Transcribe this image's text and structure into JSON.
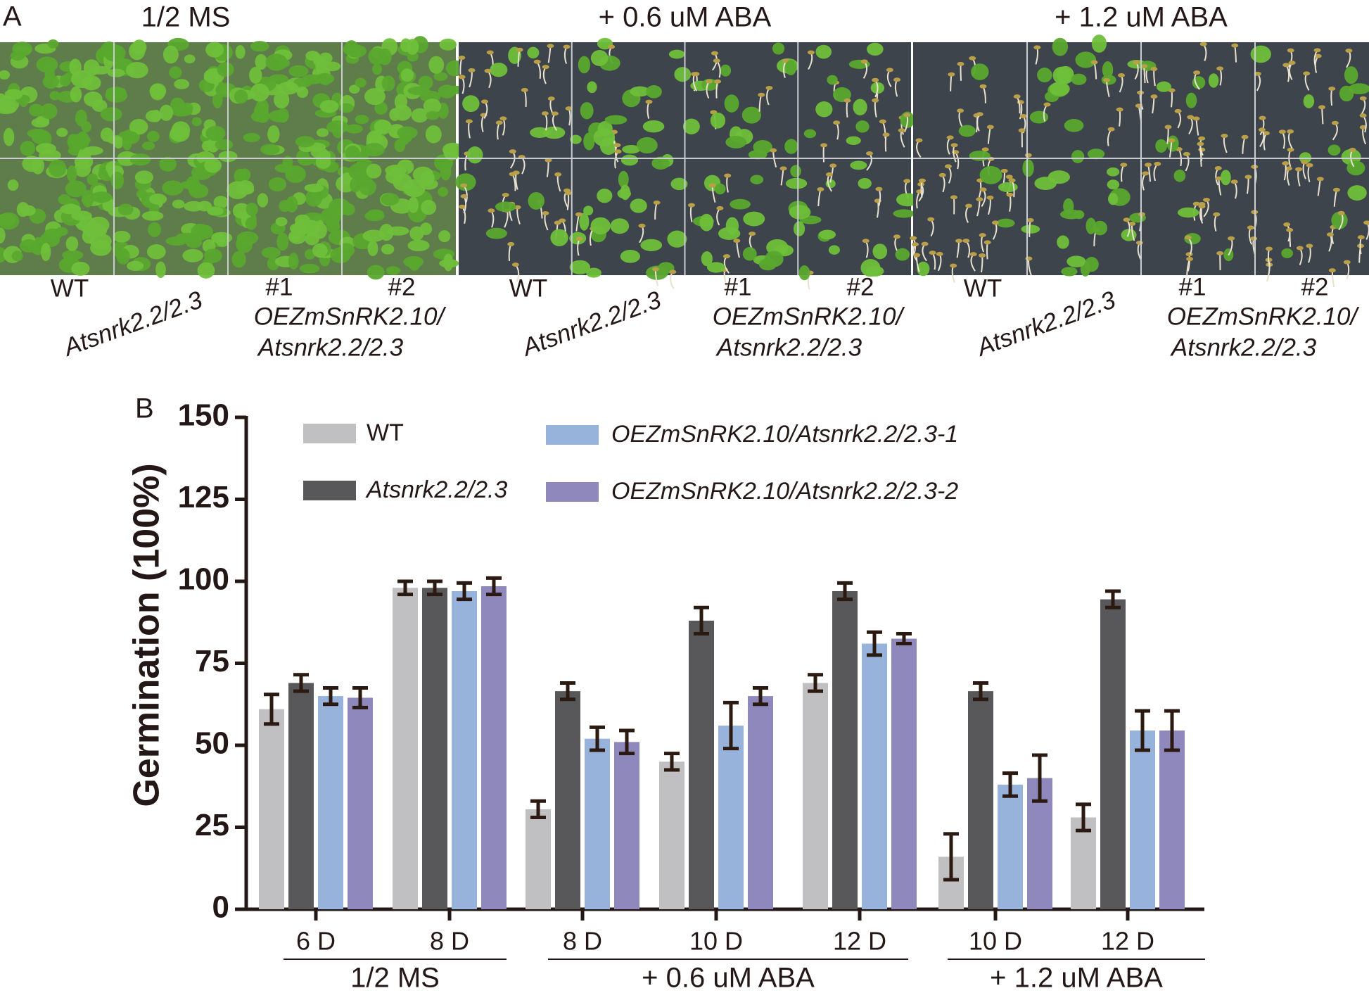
{
  "photo_panel": {
    "label": "A",
    "plates": [
      {
        "title": "1/2 MS",
        "wt": "WT",
        "mutant": "Atsnrk2.2/2.3",
        "line1": "#1",
        "line2": "#2",
        "construct": [
          "OEZmSnRK2.10/",
          "Atsnrk2.2/2.3"
        ]
      },
      {
        "title": "+ 0.6 uM ABA",
        "wt": "WT",
        "mutant": "Atsnrk2.2/2.3",
        "line1": "#1",
        "line2": "#2",
        "construct": [
          "OEZmSnRK2.10/",
          "Atsnrk2.2/2.3"
        ]
      },
      {
        "title": "+ 1.2 uM ABA",
        "wt": "WT",
        "mutant": "Atsnrk2.2/2.3",
        "line1": "#1",
        "line2": "#2",
        "construct": [
          "OEZmSnRK2.10/",
          "Atsnrk2.2/2.3"
        ]
      }
    ]
  },
  "chart_data": {
    "type": "bar",
    "panel_label": "B",
    "ylabel": "Germination (100%)",
    "groups": [
      {
        "name": "1/2 MS",
        "categories": [
          "6 D",
          "8 D"
        ]
      },
      {
        "name": "+ 0.6 uM ABA",
        "categories": [
          "8 D",
          "10 D",
          "12 D"
        ]
      },
      {
        "name": "+ 1.2 uM ABA",
        "categories": [
          "10 D",
          "12 D"
        ]
      }
    ],
    "series": [
      {
        "name": "WT",
        "color": "#c0c0c2",
        "values": [
          61,
          98,
          30.5,
          45,
          69,
          16,
          28
        ],
        "errors": [
          4.5,
          2,
          2.5,
          2.5,
          2.5,
          7,
          4
        ]
      },
      {
        "name": "Atsnrk2.2/2.3",
        "color": "#58585a",
        "values": [
          69,
          98,
          66.5,
          88,
          97,
          66.5,
          94.5
        ],
        "errors": [
          2.5,
          2,
          2.5,
          4,
          2.5,
          2.5,
          2.5
        ]
      },
      {
        "name": "OEZmSnRK2.10/Atsnrk2.2/2.3-1",
        "color": "#97b3dc",
        "values": [
          65,
          97,
          52,
          56,
          81,
          38,
          54.5
        ],
        "errors": [
          2.5,
          2.5,
          3.5,
          7,
          3.5,
          3.5,
          6
        ]
      },
      {
        "name": "OEZmSnRK2.10/Atsnrk2.2/2.3-2",
        "color": "#8f88bd",
        "values": [
          64.5,
          98.5,
          51,
          65,
          82.5,
          40,
          54.5
        ],
        "errors": [
          3,
          2.5,
          3.5,
          2.5,
          1.5,
          7,
          6
        ]
      }
    ],
    "ylim": [
      0,
      150
    ],
    "yticks": [
      0,
      25,
      50,
      75,
      100,
      125,
      150
    ],
    "grid": false
  }
}
